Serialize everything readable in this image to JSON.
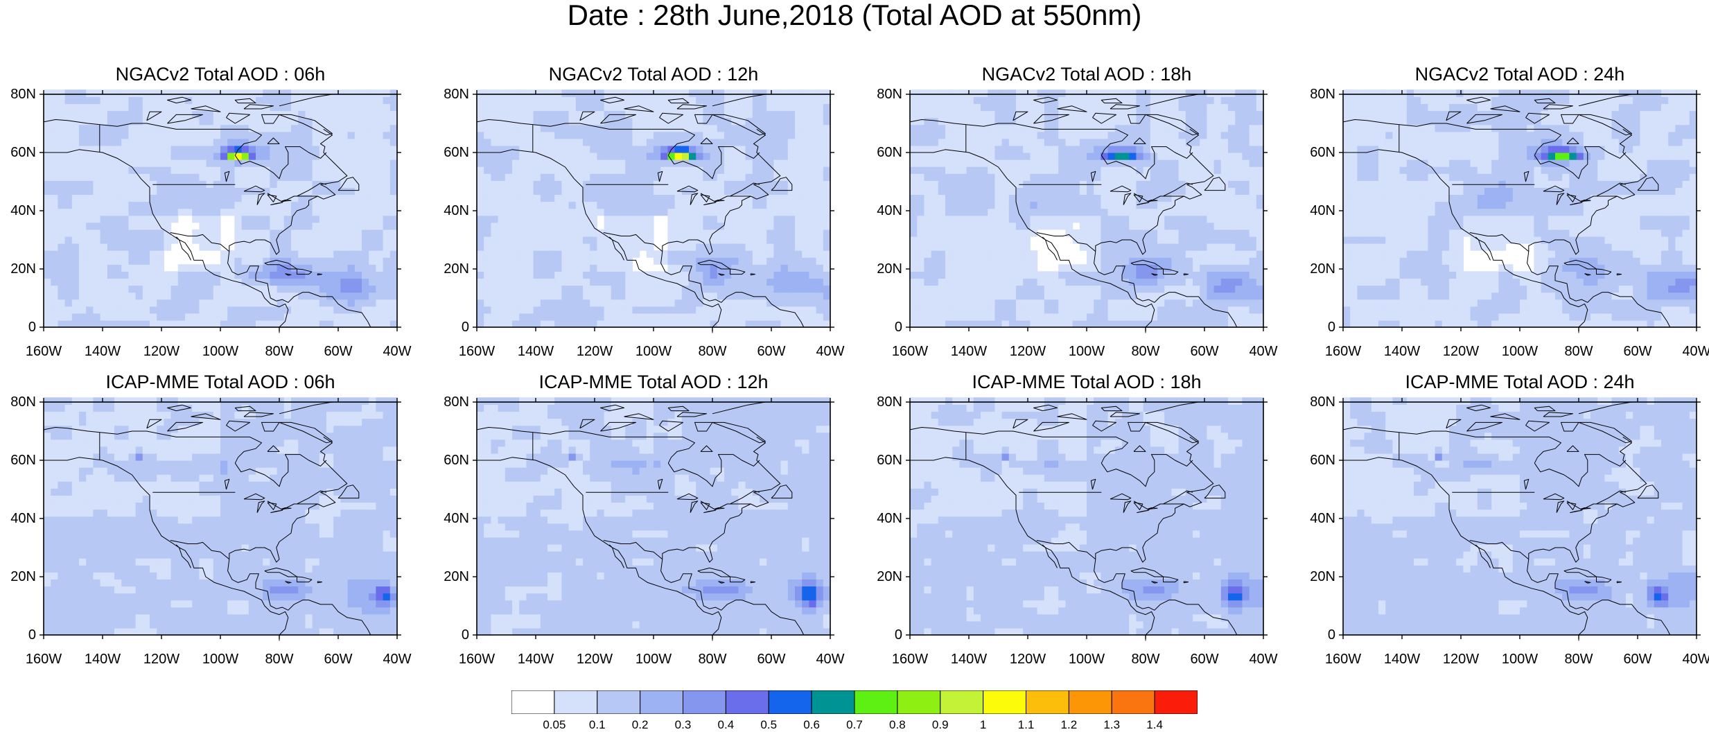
{
  "title": "Date : 28th June,2018 (Total AOD at 550nm)",
  "panels": [
    {
      "title": "NGACv2 Total AOD : 06h",
      "model": "NGACv2",
      "hour": "06h"
    },
    {
      "title": "NGACv2 Total AOD : 12h",
      "model": "NGACv2",
      "hour": "12h"
    },
    {
      "title": "NGACv2 Total AOD : 18h",
      "model": "NGACv2",
      "hour": "18h"
    },
    {
      "title": "NGACv2 Total AOD : 24h",
      "model": "NGACv2",
      "hour": "24h"
    },
    {
      "title": "ICAP-MME Total AOD : 06h",
      "model": "ICAP-MME",
      "hour": "06h"
    },
    {
      "title": "ICAP-MME Total AOD : 12h",
      "model": "ICAP-MME",
      "hour": "12h"
    },
    {
      "title": "ICAP-MME Total AOD : 18h",
      "model": "ICAP-MME",
      "hour": "18h"
    },
    {
      "title": "ICAP-MME Total AOD : 24h",
      "model": "ICAP-MME",
      "hour": "24h"
    }
  ],
  "axes": {
    "x_ticks": [
      "160W",
      "140W",
      "120W",
      "100W",
      "80W",
      "60W",
      "40W"
    ],
    "x_values": [
      -160,
      -140,
      -120,
      -100,
      -80,
      -60,
      -40
    ],
    "y_ticks": [
      "0",
      "20N",
      "40N",
      "60N",
      "80N"
    ],
    "y_values": [
      0,
      20,
      40,
      60,
      80
    ],
    "lon_range": [
      -160,
      -40
    ],
    "lat_range": [
      0,
      80
    ]
  },
  "colorbar": {
    "labels": [
      "0.05",
      "0.1",
      "0.2",
      "0.3",
      "0.4",
      "0.5",
      "0.6",
      "0.7",
      "0.8",
      "0.9",
      "1",
      "1.1",
      "1.2",
      "1.3",
      "1.4"
    ],
    "colors": [
      "#ffffff",
      "#d5e0fb",
      "#b8c8f5",
      "#9cb2f2",
      "#8596ee",
      "#6a6eea",
      "#1565ec",
      "#009393",
      "#5df012",
      "#8ef012",
      "#c3f236",
      "#fcfc0a",
      "#fcbe0a",
      "#fc9607",
      "#fa7410",
      "#fa1e0a"
    ]
  }
}
